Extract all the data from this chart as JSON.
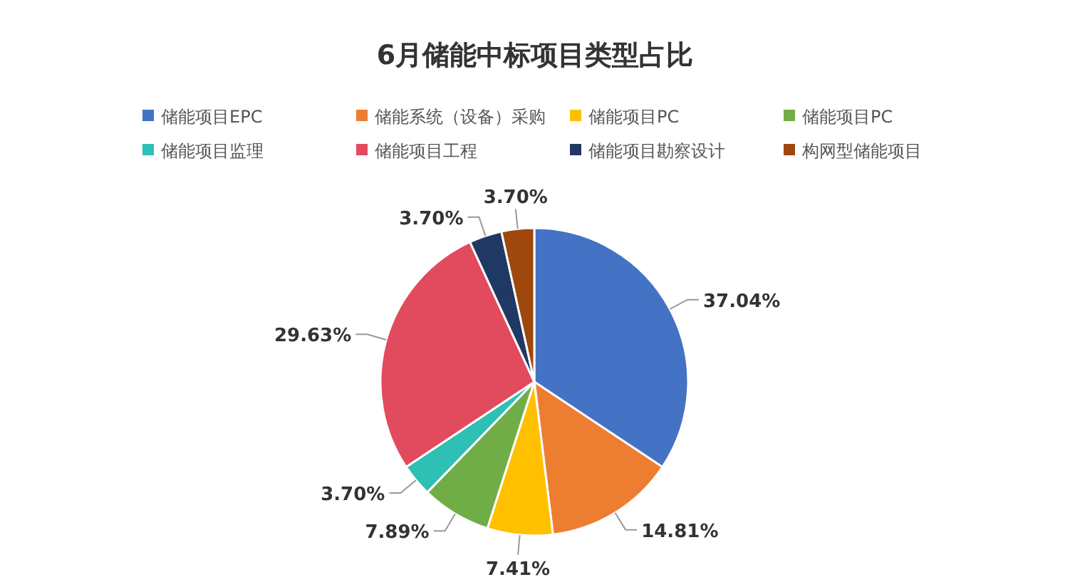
{
  "chart_data": {
    "type": "pie",
    "title": "6月储能中标项目类型占比",
    "categories": [
      "储能项目EPC",
      "储能系统（设备）采购",
      "储能项目PC",
      "储能项目PC",
      "储能项目监理",
      "储能项目工程",
      "储能项目勘察设计",
      "构网型储能项目"
    ],
    "values": [
      37.04,
      14.81,
      7.41,
      7.89,
      3.7,
      29.63,
      3.7,
      3.7
    ],
    "value_labels": [
      "37.04%",
      "14.81%",
      "7.41%",
      "7.89%",
      "3.70%",
      "29.63%",
      "3.70%",
      "3.70%"
    ],
    "colors": [
      "#4472c4",
      "#ed7d31",
      "#ffc000",
      "#70ad47",
      "#2ebfb5",
      "#e24a5e",
      "#203864",
      "#9e480e"
    ],
    "legend": "top"
  }
}
